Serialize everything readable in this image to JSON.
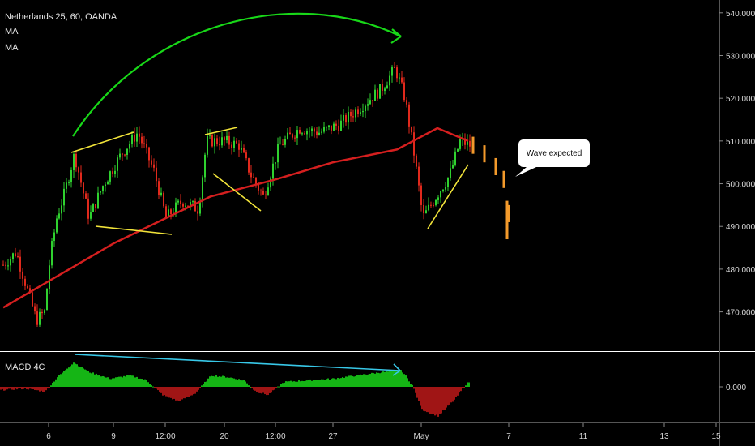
{
  "header": {
    "symbol_line": "Netherlands 25, 60, OANDA",
    "indicators": [
      "MA",
      "MA"
    ]
  },
  "macd": {
    "label": "MACD 4C",
    "zero_label": "0.000"
  },
  "callout": {
    "text": "Wave expected"
  },
  "colors": {
    "background": "#000000",
    "candle_up": "#2fd12f",
    "candle_down": "#e0291c",
    "ma": "#d51f1f",
    "trend_lines": "#f2e43a",
    "arc": "#18d818",
    "macd_divergence": "#38c8e8",
    "projection": "#f39a2b",
    "histogram_positive": "#15b515",
    "histogram_negative": "#a01515"
  },
  "chart_data": {
    "type": "line",
    "title": "Netherlands 25, 60, OANDA",
    "y_axis": {
      "ticks": [
        470,
        480,
        490,
        500,
        510,
        520,
        530,
        540
      ],
      "tick_labels": [
        "470.000",
        "480.000",
        "490.000",
        "500.000",
        "510.000",
        "520.000",
        "530.000",
        "540.000"
      ],
      "range": [
        461,
        543
      ]
    },
    "x_axis": {
      "tick_labels": [
        "6",
        "9",
        "12:00",
        "20",
        "12:00",
        "27",
        "May",
        "7",
        "11",
        "13",
        "15"
      ]
    },
    "x": [
      "6",
      "9",
      "12:00",
      "20",
      "12:00",
      "27",
      "May",
      "7"
    ],
    "series": [
      {
        "name": "price",
        "values": [
          481,
          506,
          492,
          507,
          509,
          515,
          492,
          510
        ]
      },
      {
        "name": "MA",
        "values": [
          471,
          486,
          497,
          501,
          505,
          508,
          513,
          510
        ]
      }
    ],
    "annotations": [
      {
        "type": "projection",
        "values": [
          509,
          507,
          504,
          501,
          493
        ]
      },
      {
        "type": "callout",
        "text": "Wave expected"
      }
    ]
  }
}
